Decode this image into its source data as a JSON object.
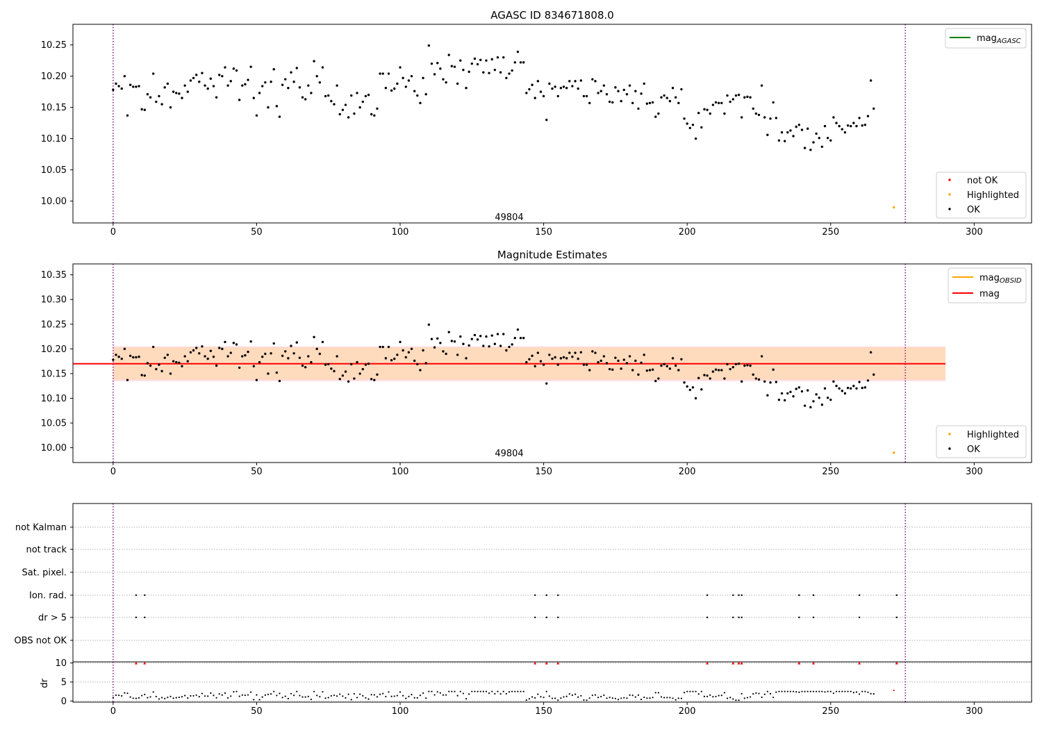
{
  "colors": {
    "ok": "#000000",
    "not_ok": "#ff0000",
    "highlighted": "#ffa500",
    "agasc_line": "#008000",
    "obsid_line": "#ffa500",
    "mag_line": "#ff0000",
    "band_outer": "#ffc0cb",
    "band_inner": "#ffdab9",
    "vline": "#800080",
    "grid": "#b0b0b0"
  },
  "chart_data": [
    {
      "id": "agasc",
      "type": "scatter",
      "title": "AGASC ID 834671808.0",
      "xlim": [
        -14,
        320
      ],
      "ylim": [
        9.965,
        10.283
      ],
      "xticks": [
        0,
        50,
        100,
        150,
        200,
        250,
        300
      ],
      "yticks": [
        "10.00",
        "10.05",
        "10.10",
        "10.15",
        "10.20",
        "10.25"
      ],
      "annotation": {
        "x": 138,
        "y": 9.975,
        "text": "49804"
      },
      "vlines": [
        0,
        276
      ],
      "legend_lines": [
        {
          "label": "mag",
          "sub": "AGASC",
          "color": "#008000"
        }
      ],
      "legend_points": [
        {
          "label": "not OK",
          "color": "#ff0000"
        },
        {
          "label": "Highlighted",
          "color": "#ffa500"
        },
        {
          "label": "OK",
          "color": "#000000"
        }
      ],
      "highlighted_points": [
        [
          272,
          9.99
        ]
      ],
      "series_ok_x_start": 0,
      "series_ok_y": [
        10.178,
        10.188,
        10.184,
        10.18,
        10.2,
        10.137,
        10.186,
        10.183,
        10.183,
        10.184,
        10.147,
        10.146,
        10.171,
        10.166,
        10.204,
        10.159,
        10.168,
        10.155,
        10.182,
        10.188,
        10.15,
        10.175,
        10.173,
        10.172,
        10.165,
        10.185,
        10.175,
        10.193,
        10.197,
        10.202,
        10.191,
        10.205,
        10.185,
        10.18,
        10.196,
        10.184,
        10.166,
        10.202,
        10.2,
        10.214,
        10.185,
        10.192,
        10.212,
        10.209,
        10.162,
        10.185,
        10.187,
        10.194,
        10.215,
        10.165,
        10.137,
        10.173,
        10.184,
        10.19,
        10.15,
        10.191,
        10.211,
        10.152,
        10.135,
        10.186,
        10.195,
        10.181,
        10.206,
        10.191,
        10.213,
        10.182,
        10.166,
        10.163,
        10.185,
        10.173,
        10.224,
        10.2,
        10.19,
        10.214,
        10.168,
        10.169,
        10.16,
        10.155,
        10.185,
        10.139,
        10.146,
        10.154,
        10.134,
        10.169,
        10.14,
        10.173,
        10.15,
        10.159,
        10.168,
        10.17,
        10.139,
        10.137,
        10.148,
        10.204,
        10.204,
        10.181,
        10.204,
        10.177,
        10.18,
        10.188,
        10.214,
        10.197,
        10.183,
        10.193,
        10.2,
        10.176,
        10.169,
        10.157,
        10.197,
        10.171,
        10.249,
        10.22,
        10.203,
        10.221,
        10.212,
        10.195,
        10.19,
        10.234,
        10.216,
        10.215,
        10.188,
        10.225,
        10.21,
        10.181,
        10.207,
        10.22,
        10.228,
        10.219,
        10.226,
        10.206,
        10.225,
        10.205,
        10.227,
        10.21,
        10.23,
        10.206,
        10.23,
        10.197,
        10.204,
        10.209,
        10.222,
        10.239,
        10.222,
        10.222,
        10.173,
        10.179,
        10.186,
        10.165,
        10.192,
        10.175,
        10.168,
        10.13,
        10.188,
        10.18,
        10.183,
        10.168,
        10.181,
        10.183,
        10.181,
        10.192,
        10.184,
        10.192,
        10.18,
        10.193,
        10.168,
        10.168,
        10.157,
        10.195,
        10.192,
        10.173,
        10.176,
        10.185,
        10.171,
        10.159,
        10.158,
        10.182,
        10.176,
        10.16,
        10.178,
        10.171,
        10.185,
        10.157,
        10.176,
        10.148,
        10.172,
        10.188,
        10.156,
        10.157,
        10.158,
        10.135,
        10.14,
        10.166,
        10.169,
        10.165,
        10.16,
        10.181,
        10.166,
        10.157,
        10.179,
        10.132,
        10.124,
        10.117,
        10.122,
        10.1,
        10.141,
        10.118,
        10.147,
        10.146,
        10.14,
        10.154,
        10.158,
        10.157,
        10.157,
        10.14,
        10.169,
        10.159,
        10.163,
        10.169,
        10.17,
        10.134,
        10.166,
        10.167,
        10.166,
        10.148,
        10.14,
        10.138,
        10.185,
        10.134,
        10.106,
        10.132,
        10.158,
        10.133,
        10.097,
        10.11,
        10.096,
        10.11,
        10.113,
        10.104,
        10.119,
        10.122,
        10.114,
        10.085,
        10.116,
        10.082,
        10.094,
        10.108,
        10.101,
        10.087,
        10.12,
        10.101,
        10.097,
        10.134,
        10.125,
        10.12,
        10.115,
        10.11,
        10.121,
        10.12,
        10.125,
        10.12,
        10.133,
        10.121,
        10.122,
        10.136,
        10.193,
        10.148
      ]
    },
    {
      "id": "estimates",
      "type": "scatter",
      "title": "Magnitude Estimates",
      "xlim": [
        -14,
        320
      ],
      "ylim": [
        9.97,
        10.372
      ],
      "xticks": [
        0,
        50,
        100,
        150,
        200,
        250,
        300
      ],
      "yticks": [
        "10.00",
        "10.05",
        "10.10",
        "10.15",
        "10.20",
        "10.25",
        "10.30",
        "10.35"
      ],
      "annotation": {
        "x": 138,
        "y": 9.99,
        "text": "49804"
      },
      "vlines": [
        0,
        276
      ],
      "mag": 10.17,
      "band_outer": [
        10.135,
        10.205
      ],
      "band_inner": [
        10.138,
        10.203
      ],
      "band_x": [
        0,
        290
      ],
      "legend_lines": [
        {
          "label": "mag",
          "sub": "OBSID",
          "color": "#ffa500"
        },
        {
          "label": "mag",
          "sub": "",
          "color": "#ff0000"
        }
      ],
      "legend_points": [
        {
          "label": "Highlighted",
          "color": "#ffa500"
        },
        {
          "label": "OK",
          "color": "#000000"
        }
      ],
      "highlighted_points": [
        [
          272,
          9.99
        ]
      ]
    },
    {
      "id": "flags",
      "type": "scatter",
      "xlim": [
        -14,
        320
      ],
      "xticks": [
        0,
        50,
        100,
        150,
        200,
        250,
        300
      ],
      "categories": [
        "not Kalman",
        "not track",
        "Sat. pixel.",
        "Ion. rad.",
        "dr > 5",
        "OBS not OK"
      ],
      "vlines": [
        0,
        276
      ],
      "flagged_x": [
        8,
        11,
        147,
        151,
        155,
        207,
        216,
        218,
        219,
        239,
        244,
        260,
        273
      ]
    },
    {
      "id": "dr",
      "type": "scatter",
      "ylabel": "dr",
      "xlim": [
        -14,
        320
      ],
      "ylim": [
        -0.3,
        10.3
      ],
      "yticks": [
        "0",
        "5",
        "10"
      ],
      "xticks": [
        0,
        50,
        100,
        150,
        200,
        250,
        300
      ],
      "vlines": [
        0,
        276
      ],
      "flagged_x": [
        8,
        11,
        147,
        151,
        155,
        207,
        216,
        218,
        219,
        239,
        244,
        260,
        273
      ]
    }
  ]
}
